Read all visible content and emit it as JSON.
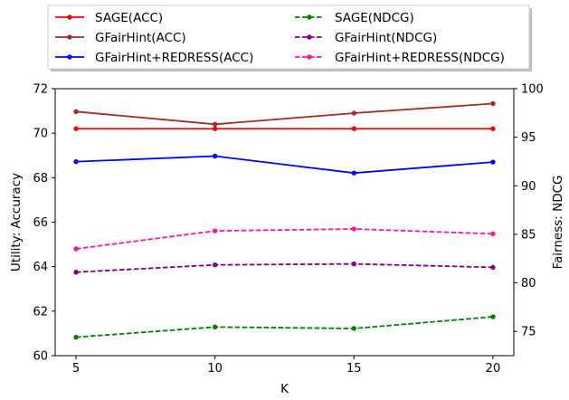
{
  "chart_data": {
    "type": "line",
    "x": [
      5,
      10,
      15,
      20
    ],
    "xlabel": "K",
    "ylabel_left": "Utility: Accuracy",
    "ylabel_right": "Fairness: NDCG",
    "ylim_left": [
      60,
      72
    ],
    "ylim_right": [
      72.5,
      100
    ],
    "xticks": [
      5,
      10,
      15,
      20
    ],
    "yticks_left": [
      60,
      62,
      64,
      66,
      68,
      70,
      72
    ],
    "yticks_right": [
      75,
      80,
      85,
      90,
      95,
      100
    ],
    "legend_position": "top-center-outside",
    "grid": false,
    "series": [
      {
        "name": "SAGE(ACC)",
        "axis": "left",
        "color": "#ff0000",
        "dashed": false,
        "values": [
          70.2,
          70.2,
          70.2,
          70.2
        ]
      },
      {
        "name": "GFairHint(ACC)",
        "axis": "left",
        "color": "#a52a2a",
        "dashed": false,
        "values": [
          70.97,
          70.4,
          70.9,
          71.33
        ]
      },
      {
        "name": "GFairHint+REDRESS(ACC)",
        "axis": "left",
        "color": "#0000ff",
        "dashed": false,
        "values": [
          68.72,
          68.97,
          68.21,
          68.7
        ]
      },
      {
        "name": "SAGE(NDCG)",
        "axis": "right",
        "color": "#008000",
        "dashed": true,
        "values": [
          74.4,
          75.45,
          75.3,
          76.5
        ]
      },
      {
        "name": "GFairHint(NDCG)",
        "axis": "right",
        "color": "#800080",
        "dashed": true,
        "values": [
          81.1,
          81.85,
          81.95,
          81.6
        ]
      },
      {
        "name": "GFairHint+REDRESS(NDCG)",
        "axis": "right",
        "color": "#ff1493",
        "dashed": true,
        "values": [
          83.5,
          85.35,
          85.55,
          85.05
        ]
      }
    ]
  }
}
